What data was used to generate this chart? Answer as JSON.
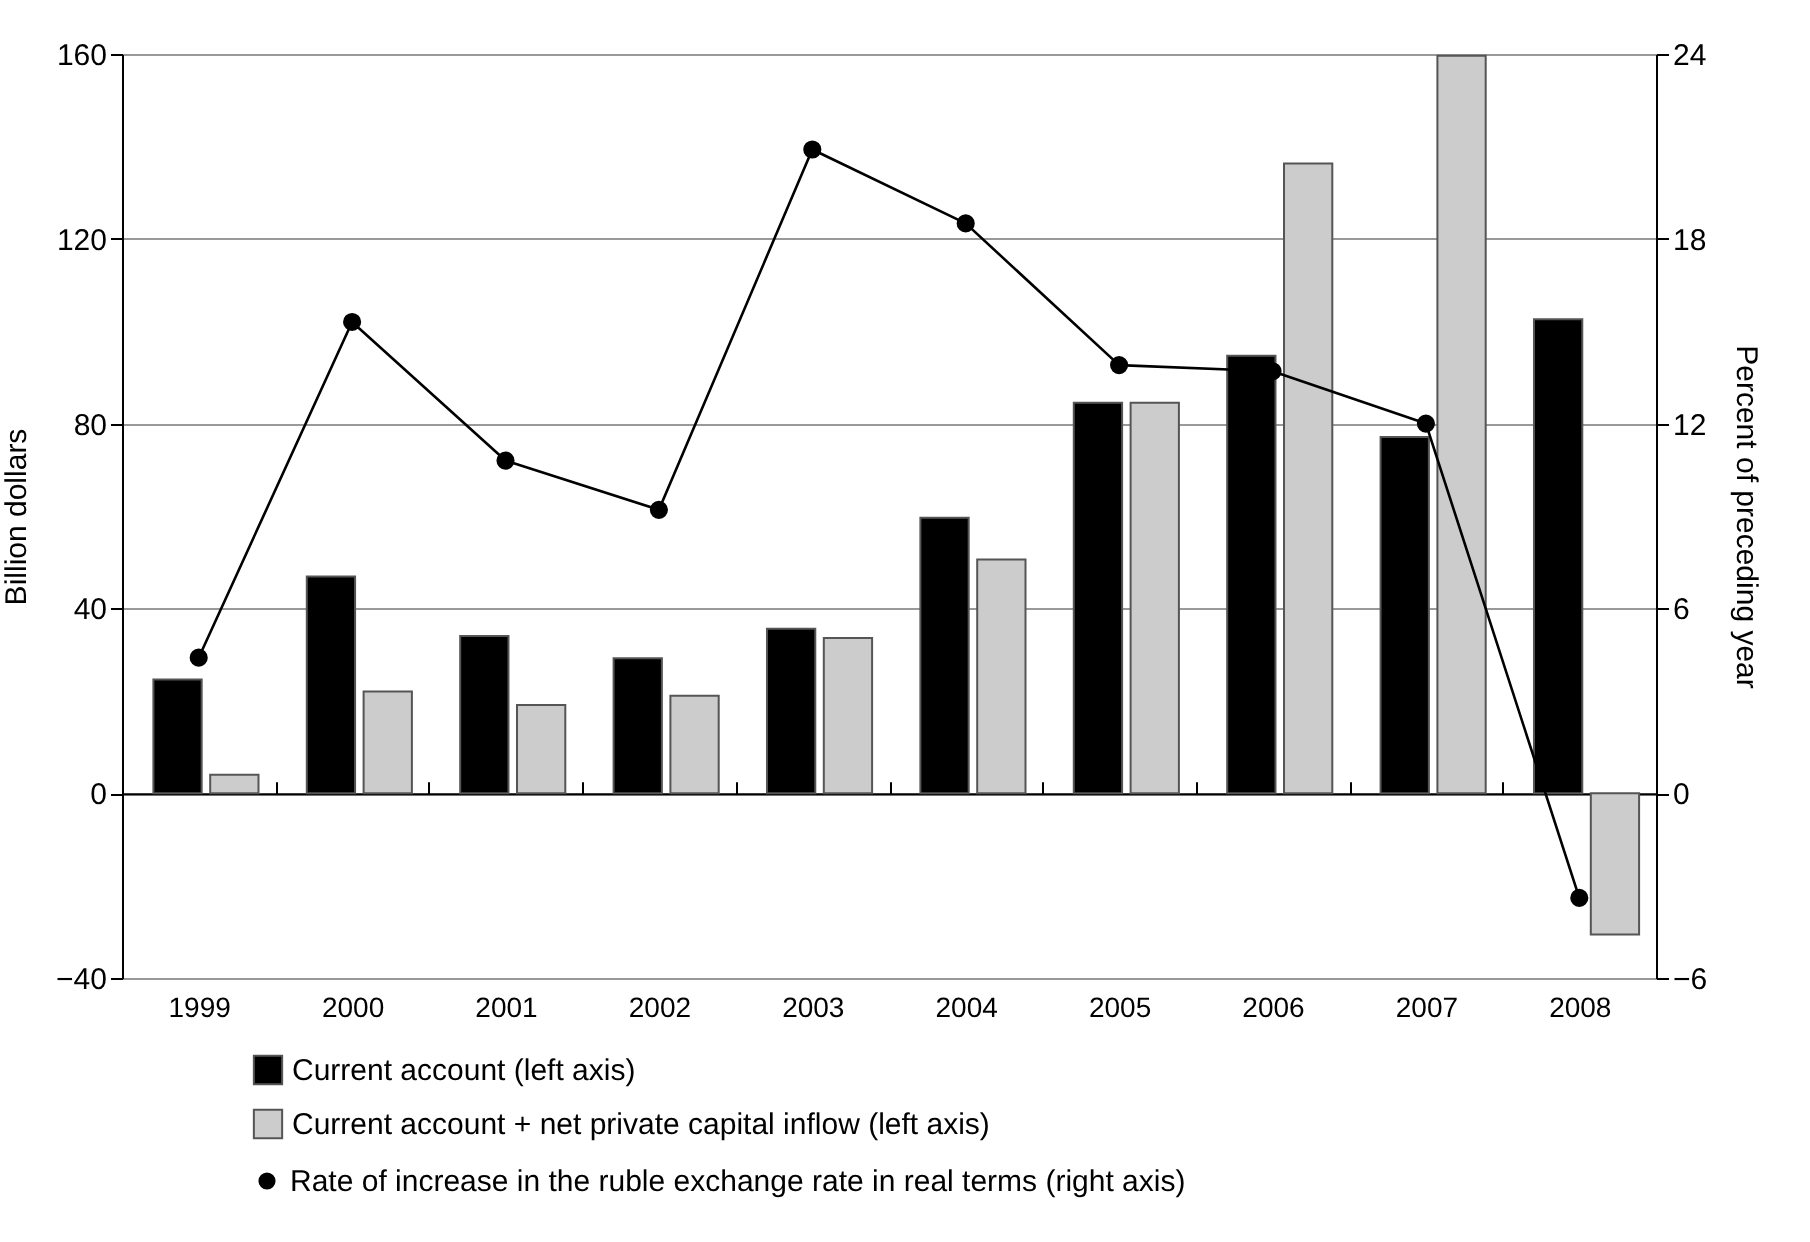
{
  "chart_data": {
    "type": "bar",
    "categories": [
      "1999",
      "2000",
      "2001",
      "2002",
      "2003",
      "2004",
      "2005",
      "2006",
      "2007",
      "2008"
    ],
    "ylabel": "Billion dollars",
    "y2label": "Percent of preceding year",
    "ylim": [
      -40,
      160
    ],
    "yticks": [
      -40,
      0,
      40,
      80,
      120,
      160
    ],
    "y2lim": [
      -6,
      24
    ],
    "y2ticks": [
      -6,
      0,
      6,
      12,
      18,
      24
    ],
    "grid": "y",
    "legend": "bottom",
    "marker": "circle",
    "series": [
      {
        "name": "Current account (left axis)",
        "color": "#000000",
        "values": [
          24.6,
          46.9,
          34.0,
          29.2,
          35.6,
          59.6,
          84.5,
          94.7,
          77.1,
          102.6
        ]
      },
      {
        "name": "Current account + net private capital inflow (left axis)",
        "color": "#cccccc",
        "values": [
          4.0,
          22.0,
          19.1,
          21.1,
          33.6,
          50.6,
          84.5,
          136.3,
          159.6,
          -30.6
        ]
      },
      {
        "name": "Rate of increase in the ruble exchange rate in real terms (right axis)",
        "type": "line",
        "axis": "y2",
        "color": "#000000",
        "values": [
          4.4,
          15.3,
          10.8,
          9.2,
          20.9,
          18.5,
          13.9,
          13.7,
          12.0,
          -3.4
        ]
      }
    ]
  }
}
